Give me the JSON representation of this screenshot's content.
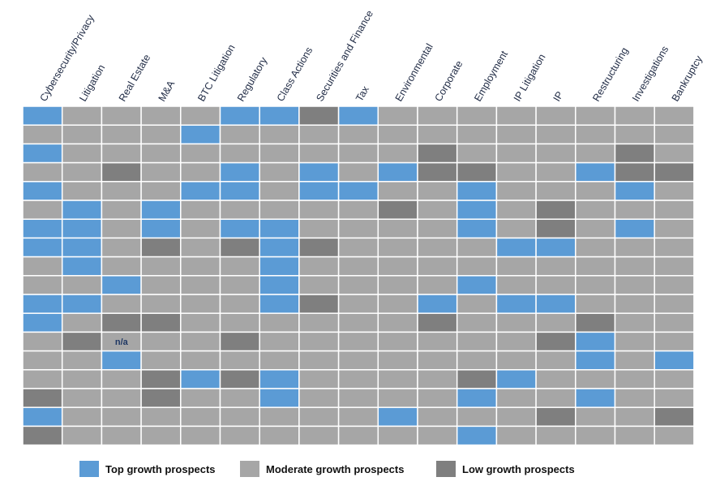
{
  "chart_data": {
    "type": "heatmap",
    "title": "",
    "columns": [
      "Cybersecurity/Privacy",
      "Litigation",
      "Real Estate",
      "M&A",
      "BTC Litigation",
      "Regulatory",
      "Class Actions",
      "Securities and Finance",
      "Tax",
      "Environmental",
      "Corporate",
      "Employment",
      "IP Litigation",
      "IP",
      "Restructuring",
      "Investigations",
      "Bankruptcy"
    ],
    "levels": {
      "T": "Top growth prospects",
      "M": "Moderate growth prospects",
      "L": "Low growth prospects"
    },
    "rows": [
      [
        "T",
        "M",
        "M",
        "M",
        "M",
        "T",
        "T",
        "L",
        "T",
        "M",
        "M",
        "M",
        "M",
        "M",
        "M",
        "M",
        "M"
      ],
      [
        "M",
        "M",
        "M",
        "M",
        "T",
        "M",
        "M",
        "M",
        "M",
        "M",
        "M",
        "M",
        "M",
        "M",
        "M",
        "M",
        "M"
      ],
      [
        "T",
        "M",
        "M",
        "M",
        "M",
        "M",
        "M",
        "M",
        "M",
        "M",
        "L",
        "M",
        "M",
        "M",
        "M",
        "L",
        "M"
      ],
      [
        "M",
        "M",
        "L",
        "M",
        "M",
        "T",
        "M",
        "T",
        "M",
        "T",
        "L",
        "L",
        "M",
        "M",
        "T",
        "L",
        "L"
      ],
      [
        "T",
        "M",
        "M",
        "M",
        "T",
        "T",
        "M",
        "T",
        "T",
        "M",
        "M",
        "T",
        "M",
        "M",
        "M",
        "T",
        "M"
      ],
      [
        "M",
        "T",
        "M",
        "T",
        "M",
        "M",
        "M",
        "M",
        "M",
        "L",
        "M",
        "T",
        "M",
        "L",
        "M",
        "M",
        "M"
      ],
      [
        "T",
        "T",
        "M",
        "T",
        "M",
        "T",
        "T",
        "M",
        "M",
        "M",
        "M",
        "T",
        "M",
        "L",
        "M",
        "T",
        "M"
      ],
      [
        "T",
        "T",
        "M",
        "L",
        "M",
        "L",
        "T",
        "L",
        "M",
        "M",
        "M",
        "M",
        "T",
        "T",
        "M",
        "M",
        "M"
      ],
      [
        "M",
        "T",
        "M",
        "M",
        "M",
        "M",
        "T",
        "M",
        "M",
        "M",
        "M",
        "M",
        "M",
        "M",
        "M",
        "M",
        "M"
      ],
      [
        "M",
        "M",
        "T",
        "M",
        "M",
        "M",
        "T",
        "M",
        "M",
        "M",
        "M",
        "T",
        "M",
        "M",
        "M",
        "M",
        "M"
      ],
      [
        "T",
        "T",
        "M",
        "M",
        "M",
        "M",
        "T",
        "L",
        "M",
        "M",
        "T",
        "M",
        "T",
        "T",
        "M",
        "M",
        "M"
      ],
      [
        "T",
        "M",
        "L",
        "L",
        "M",
        "M",
        "M",
        "M",
        "M",
        "M",
        "L",
        "M",
        "M",
        "M",
        "L",
        "M",
        "M"
      ],
      [
        "M",
        "L",
        "NA",
        "M",
        "M",
        "L",
        "M",
        "M",
        "M",
        "M",
        "M",
        "M",
        "M",
        "L",
        "T",
        "M",
        "M"
      ],
      [
        "M",
        "M",
        "T",
        "M",
        "M",
        "M",
        "M",
        "M",
        "M",
        "M",
        "M",
        "M",
        "M",
        "M",
        "T",
        "M",
        "T"
      ],
      [
        "M",
        "M",
        "M",
        "L",
        "T",
        "L",
        "T",
        "M",
        "M",
        "M",
        "M",
        "L",
        "T",
        "M",
        "M",
        "M",
        "M"
      ],
      [
        "L",
        "M",
        "M",
        "L",
        "M",
        "M",
        "T",
        "M",
        "M",
        "M",
        "M",
        "T",
        "M",
        "M",
        "T",
        "M",
        "M"
      ],
      [
        "T",
        "M",
        "M",
        "M",
        "M",
        "M",
        "M",
        "M",
        "M",
        "T",
        "M",
        "M",
        "M",
        "L",
        "M",
        "M",
        "L"
      ],
      [
        "L",
        "M",
        "M",
        "M",
        "M",
        "M",
        "M",
        "M",
        "M",
        "M",
        "M",
        "T",
        "M",
        "M",
        "M",
        "M",
        "M"
      ]
    ],
    "na_text": "n/a",
    "legend": [
      {
        "key": "T",
        "label": "Top growth prospects"
      },
      {
        "key": "M",
        "label": "Moderate growth prospects"
      },
      {
        "key": "L",
        "label": "Low growth prospects"
      }
    ],
    "legend_position": "bottom",
    "colors": {
      "T": "#5b9bd5",
      "M": "#a6a6a6",
      "L": "#7f7f7f",
      "NA": "#a6a6a6",
      "grid": "#ffffff"
    }
  }
}
